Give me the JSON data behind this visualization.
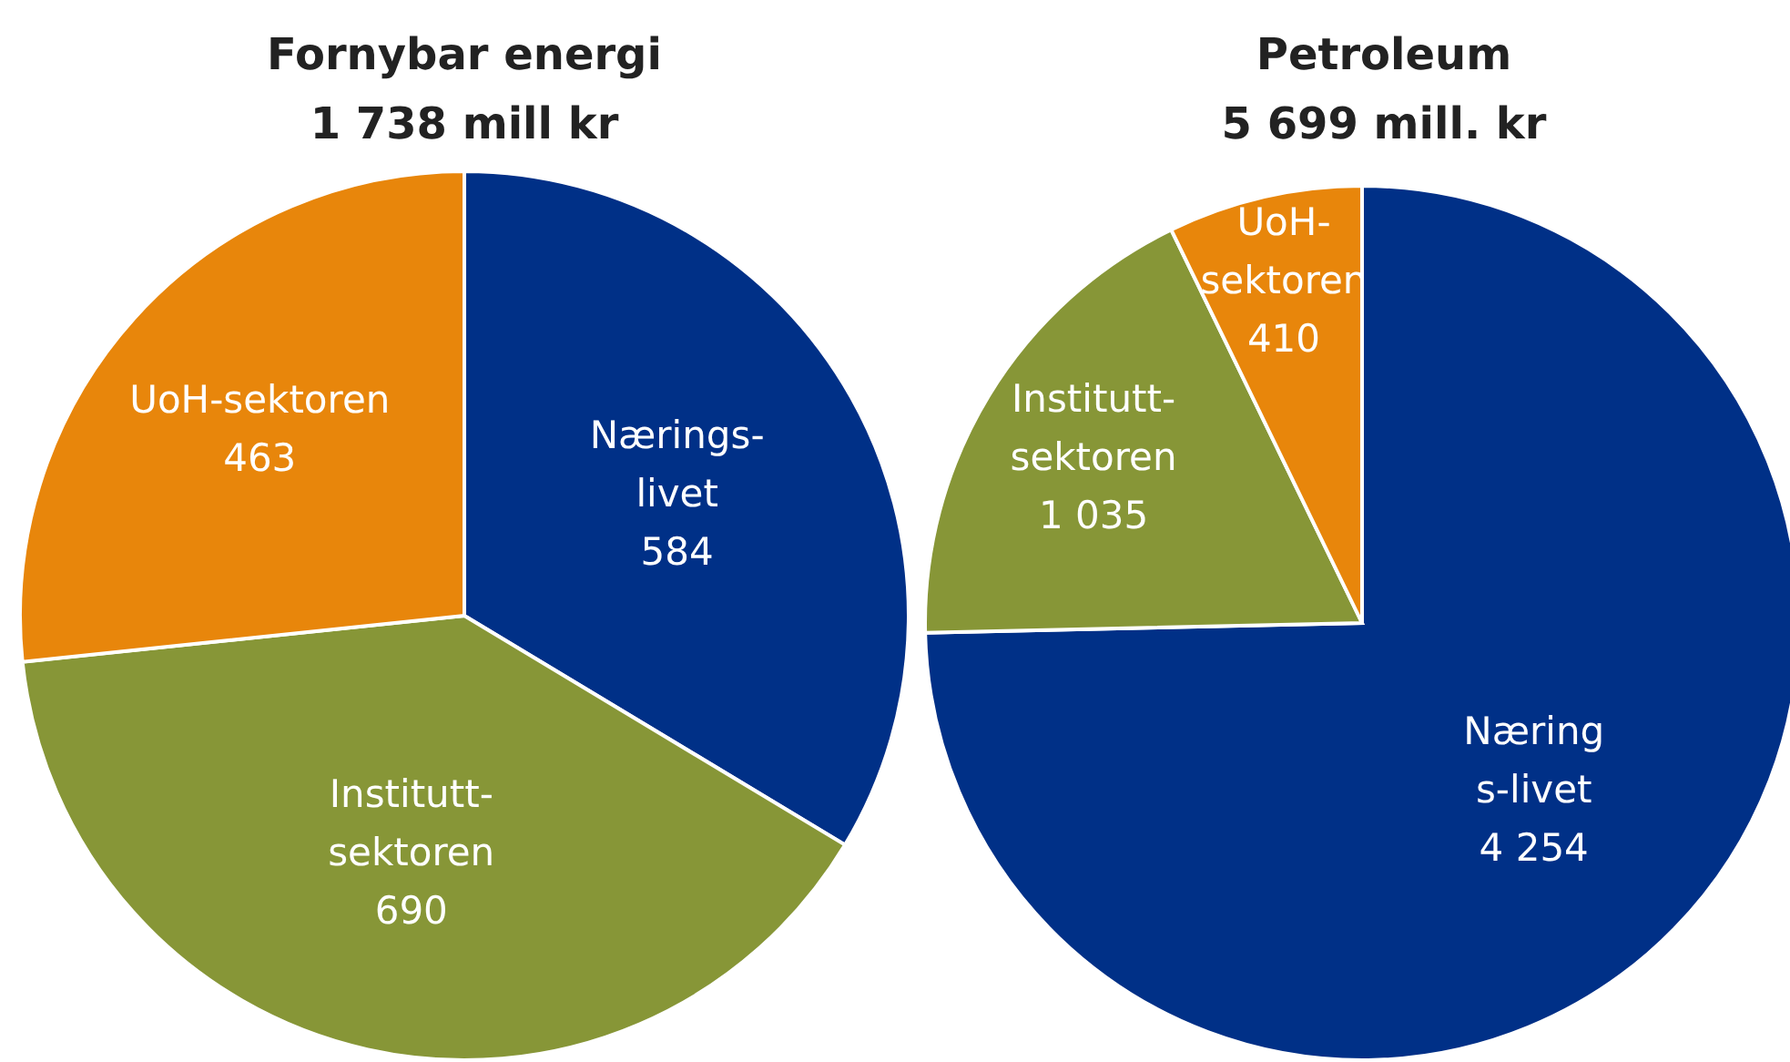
{
  "chart_data": [
    {
      "type": "pie",
      "title": "Fornybar energi",
      "subtitle": "1 738 mill kr",
      "categories": [
        "Nærings-\nlivet",
        "Institutt-\nsektoren",
        "UoH-sektoren"
      ],
      "values": [
        584,
        690,
        463
      ],
      "value_labels": [
        "584",
        "690",
        "463"
      ],
      "colors": [
        "#003087",
        "#879637",
        "#e8860b"
      ]
    },
    {
      "type": "pie",
      "title": "Petroleum",
      "subtitle": "5 699 mill. kr",
      "categories": [
        "Næring\ns-livet",
        "Institutt-\nsektoren",
        "UoH-\nsektoren"
      ],
      "values": [
        4254,
        1035,
        410
      ],
      "value_labels": [
        "4 254",
        "1 035",
        "410"
      ],
      "colors": [
        "#003087",
        "#879637",
        "#e8860b"
      ]
    }
  ]
}
